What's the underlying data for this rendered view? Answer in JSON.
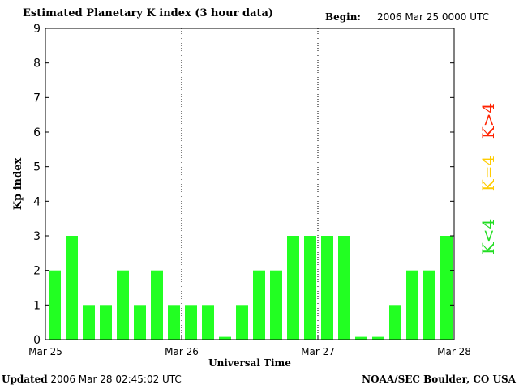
{
  "header": {
    "title": "Estimated Planetary K index (3 hour data)",
    "begin_label": "Begin:",
    "begin_value": "2006 Mar 25 0000 UTC"
  },
  "footer": {
    "updated_label": "Updated",
    "updated_value": "2006 Mar 28 02:45:02 UTC",
    "source": "NOAA/SEC Boulder, CO USA"
  },
  "legend": {
    "low": {
      "text": "K<4",
      "color": "#22dd22"
    },
    "mid": {
      "text": "K=4",
      "color": "#ffcc00"
    },
    "high": {
      "text": "K>4",
      "color": "#ff2200"
    }
  },
  "chart_data": {
    "type": "bar",
    "title": "Estimated Planetary K index (3 hour data)",
    "xlabel": "Universal Time",
    "ylabel": "Kp index",
    "ylim": [
      0,
      9
    ],
    "yticks": [
      0,
      1,
      2,
      3,
      4,
      5,
      6,
      7,
      8,
      9
    ],
    "xtick_labels": [
      "Mar 25",
      "Mar 26",
      "Mar 27",
      "Mar 28"
    ],
    "day_separators": [
      "Mar 26",
      "Mar 27"
    ],
    "bar_color": "#22ff22",
    "bins_per_day": 8,
    "values": [
      2,
      3,
      1,
      1,
      2,
      1,
      2,
      1,
      1,
      1,
      0,
      1,
      2,
      2,
      3,
      3,
      3,
      3,
      0,
      0,
      1,
      2,
      2,
      3
    ]
  }
}
